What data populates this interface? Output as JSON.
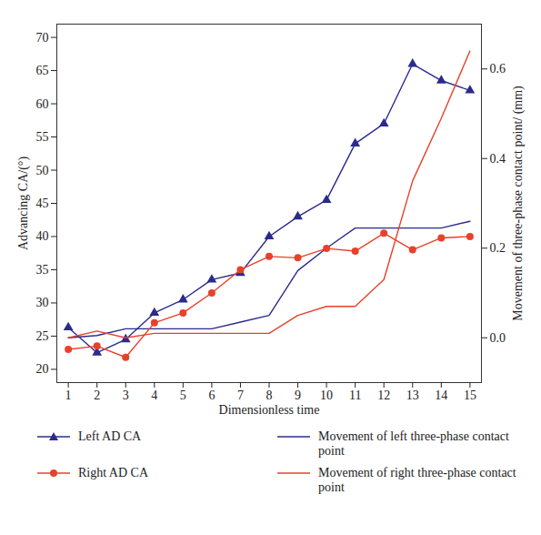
{
  "chart_data": {
    "type": "line",
    "x_label": "Dimensionless time",
    "y_label": "Advancing CA/(°)",
    "y2_label": "Movement of three-phase contact point/ (mm)",
    "x": [
      1,
      2,
      3,
      4,
      5,
      6,
      7,
      8,
      9,
      10,
      11,
      12,
      13,
      14,
      15
    ],
    "xlim": [
      0.6,
      15.4
    ],
    "xticks": [
      1,
      2,
      3,
      4,
      5,
      6,
      7,
      8,
      9,
      10,
      11,
      12,
      13,
      14,
      15
    ],
    "ylim": [
      18,
      72
    ],
    "yticks": [
      20,
      25,
      30,
      35,
      40,
      45,
      50,
      55,
      60,
      65,
      70
    ],
    "y2lim": [
      -0.1,
      0.7
    ],
    "y2ticks": [
      {
        "value": 0,
        "label": "0.0"
      },
      {
        "value": 0.2,
        "label": "0.2"
      },
      {
        "value": 0.4,
        "label": "0.4"
      },
      {
        "value": 0.6,
        "label": "0.6"
      }
    ],
    "grid": false,
    "legend": "bottom",
    "series": [
      {
        "name": "Left AD CA",
        "color": "#2b2b8c",
        "marker": "triangle",
        "values": [
          26.3,
          22.5,
          24.5,
          28.5,
          30.5,
          33.5,
          34.5,
          40,
          43,
          45.5,
          54,
          57,
          66,
          63.5,
          62
        ]
      },
      {
        "name": "Movement of left three-phase contact point",
        "color": "#2b2b8c",
        "axis": "y2",
        "values": [
          0.0,
          0.005,
          0.02,
          0.02,
          0.02,
          0.02,
          0.035,
          0.05,
          0.15,
          0.2,
          0.245,
          0.245,
          0.245,
          0.245,
          0.26
        ]
      },
      {
        "name": "Right AD CA",
        "color": "#e8412a",
        "marker": "circle",
        "values": [
          23,
          23.5,
          21.8,
          27,
          28.5,
          31.5,
          35,
          37,
          36.8,
          38.2,
          37.8,
          40.5,
          38,
          39.8,
          40
        ]
      },
      {
        "name": "Movement of right three-phase contact point",
        "color": "#e8412a",
        "axis": "y2",
        "values": [
          0.0,
          0.015,
          0.0,
          0.01,
          0.01,
          0.01,
          0.01,
          0.01,
          0.05,
          0.07,
          0.07,
          0.13,
          0.35,
          0.49,
          0.64
        ]
      }
    ]
  }
}
